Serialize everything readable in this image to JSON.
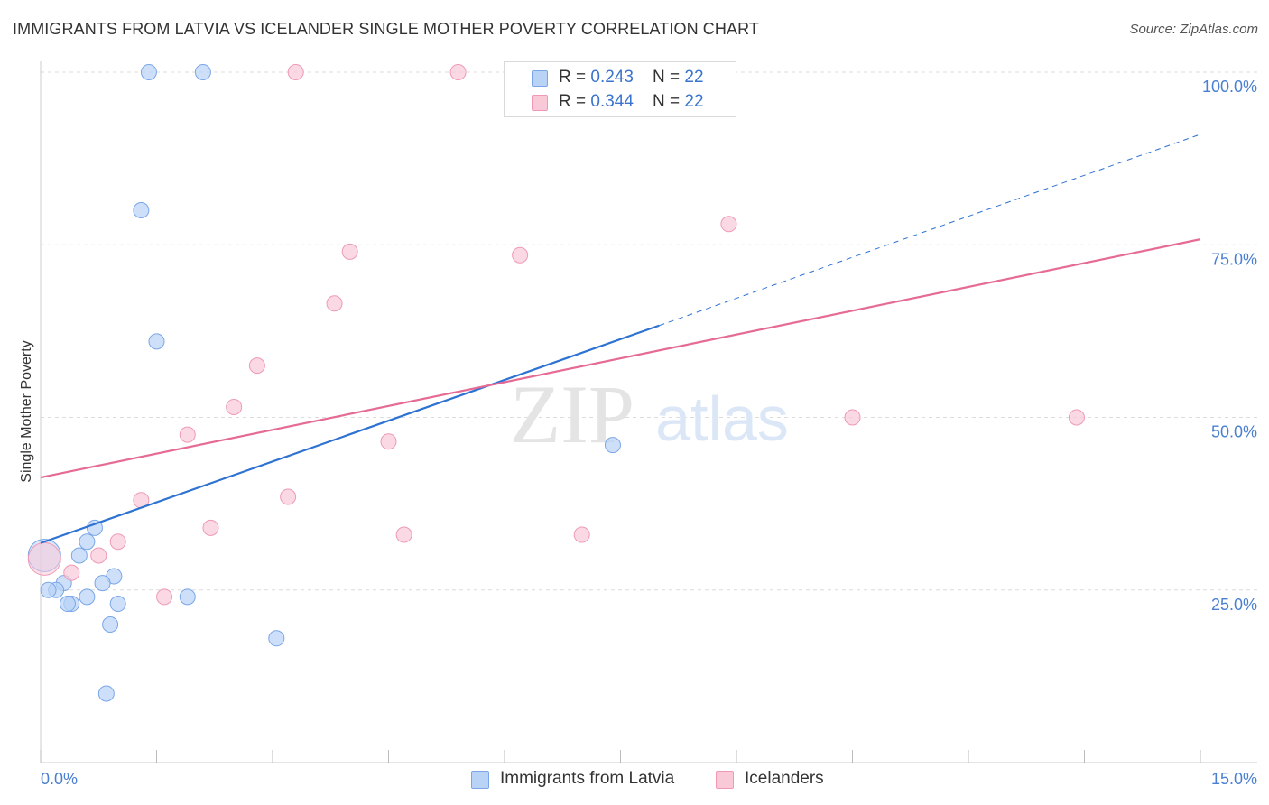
{
  "header": {
    "title": "IMMIGRANTS FROM LATVIA VS ICELANDER SINGLE MOTHER POVERTY CORRELATION CHART",
    "source": "Source: ZipAtlas.com"
  },
  "legend_top": {
    "rows": [
      {
        "r_label": "R = ",
        "r_value": "0.243",
        "n_label": "N = ",
        "n_value": "22"
      },
      {
        "r_label": "R = ",
        "r_value": "0.344",
        "n_label": "N = ",
        "n_value": "22"
      }
    ]
  },
  "legend_bottom": {
    "items": [
      {
        "label": "Immigrants from Latvia"
      },
      {
        "label": "Icelanders"
      }
    ]
  },
  "watermark": {
    "part1": "ZIP",
    "part2": "atlas"
  },
  "colors": {
    "blue_fill": "#b9d3f6",
    "blue_stroke": "#7aa6e8",
    "blue_line": "#2e72d2",
    "pink_fill": "#f9c9d8",
    "pink_stroke": "#ee9ab5",
    "pink_line": "#e56b95",
    "tick_text": "#4a7fd1",
    "grid": "#dcdcdc"
  },
  "chart_data": {
    "type": "scatter",
    "ylabel": "Single Mother Poverty",
    "xlabel": "",
    "xlim": [
      0,
      15
    ],
    "ylim": [
      0,
      100
    ],
    "x_tick_labels": [
      "0.0%",
      "15.0%"
    ],
    "y_ticks": [
      {
        "value": 25,
        "label": "25.0%"
      },
      {
        "value": 50,
        "label": "50.0%"
      },
      {
        "value": 75,
        "label": "75.0%"
      },
      {
        "value": 100,
        "label": "100.0%"
      }
    ],
    "grid": true,
    "legend_position": "top-center",
    "series": [
      {
        "name": "Immigrants from Latvia",
        "color": "blue",
        "points": [
          [
            1.4,
            100
          ],
          [
            2.1,
            100
          ],
          [
            1.3,
            80
          ],
          [
            1.5,
            61
          ],
          [
            7.4,
            46
          ],
          [
            0.7,
            34
          ],
          [
            0.6,
            32
          ],
          [
            0.5,
            30
          ],
          [
            0.95,
            27
          ],
          [
            0.8,
            26
          ],
          [
            0.3,
            26
          ],
          [
            0.2,
            25
          ],
          [
            0.1,
            25
          ],
          [
            0.6,
            24
          ],
          [
            1.9,
            24
          ],
          [
            0.4,
            23
          ],
          [
            0.35,
            23
          ],
          [
            1.0,
            23
          ],
          [
            0.9,
            20
          ],
          [
            3.05,
            18
          ],
          [
            0.85,
            10
          ],
          [
            0.05,
            30
          ]
        ],
        "trend": {
          "x0": 0,
          "y0": 31.8,
          "x1": 8.0,
          "y1": 63.3,
          "dashed_to": {
            "x": 15,
            "y": 91
          }
        }
      },
      {
        "name": "Icelanders",
        "color": "pink",
        "points": [
          [
            3.3,
            100
          ],
          [
            5.4,
            100
          ],
          [
            8.9,
            78
          ],
          [
            4.0,
            74
          ],
          [
            6.2,
            73.5
          ],
          [
            3.8,
            66.5
          ],
          [
            2.8,
            57.5
          ],
          [
            2.5,
            51.5
          ],
          [
            10.5,
            50
          ],
          [
            13.4,
            50
          ],
          [
            1.9,
            47.5
          ],
          [
            4.5,
            46.5
          ],
          [
            3.2,
            38.5
          ],
          [
            1.3,
            38
          ],
          [
            2.2,
            34
          ],
          [
            4.7,
            33
          ],
          [
            7.0,
            33
          ],
          [
            1.0,
            32
          ],
          [
            0.75,
            30
          ],
          [
            0.4,
            27.5
          ],
          [
            1.6,
            24
          ],
          [
            0.05,
            29.5
          ]
        ],
        "trend": {
          "x0": 0,
          "y0": 41.3,
          "x1": 15,
          "y1": 75.8
        }
      }
    ]
  }
}
